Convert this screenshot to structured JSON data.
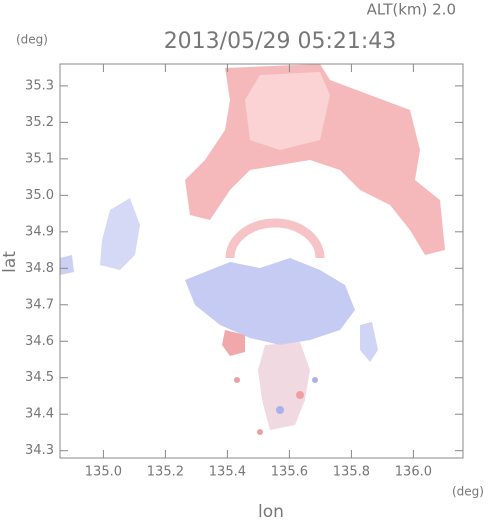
{
  "chart_data": {
    "type": "image",
    "title": "2013/05/29 05:21:43",
    "subtitle": "ALT(km) 2.0",
    "x_label": "lon",
    "y_label": "lat",
    "x_unit": "(deg)",
    "y_unit": "(deg)",
    "xlim": [
      134.86,
      136.16
    ],
    "ylim": [
      34.28,
      35.36
    ],
    "xticks": [
      {
        "value": 135,
        "label": "135.0"
      },
      135.2,
      135.4,
      135.6,
      135.8,
      {
        "value": 136,
        "label": "136.0"
      }
    ],
    "yticks": [
      34.3,
      34.4,
      34.5,
      34.6,
      34.7,
      34.8,
      34.9,
      {
        "value": 35,
        "label": "35.0"
      },
      35.1,
      35.2,
      35.3
    ]
  }
}
